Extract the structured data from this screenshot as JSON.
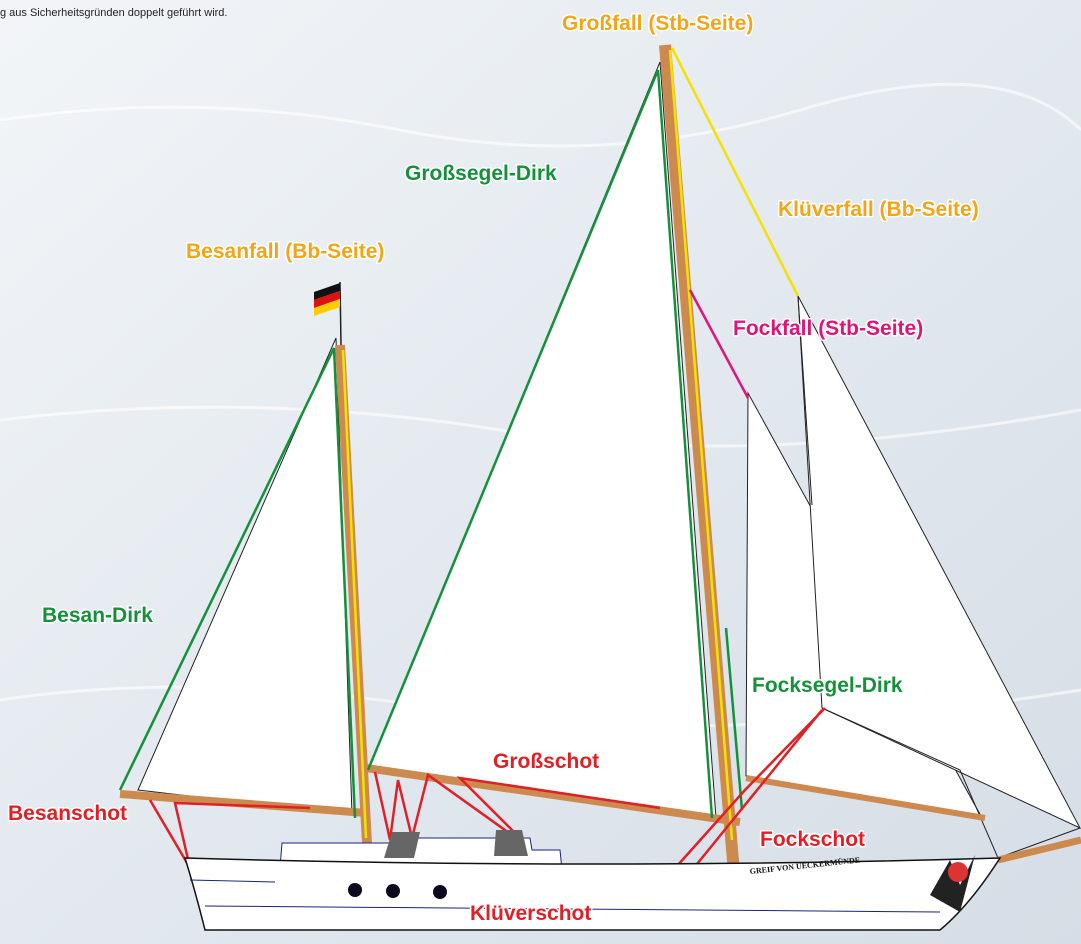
{
  "note_text": "g aus Sicherheitsgründen doppelt geführt wird.",
  "labels": {
    "grossfall": "Großfall (Stb-Seite)",
    "grosssegel_dirk": "Großsegel-Dirk",
    "kluverfall": "Klüverfall (Bb-Seite)",
    "besanfall": "Besanfall (Bb-Seite)",
    "fockfall": "Fockfall (Stb-Seite)",
    "besan_dirk": "Besan-Dirk",
    "focksegel_dirk": "Focksegel-Dirk",
    "grossschot": "Großschot",
    "besanschot": "Besanschot",
    "fockschot": "Fockschot",
    "kluverschot": "Klüverschot"
  },
  "boat_name": "GREIF VON UECKERMÜNDE"
}
